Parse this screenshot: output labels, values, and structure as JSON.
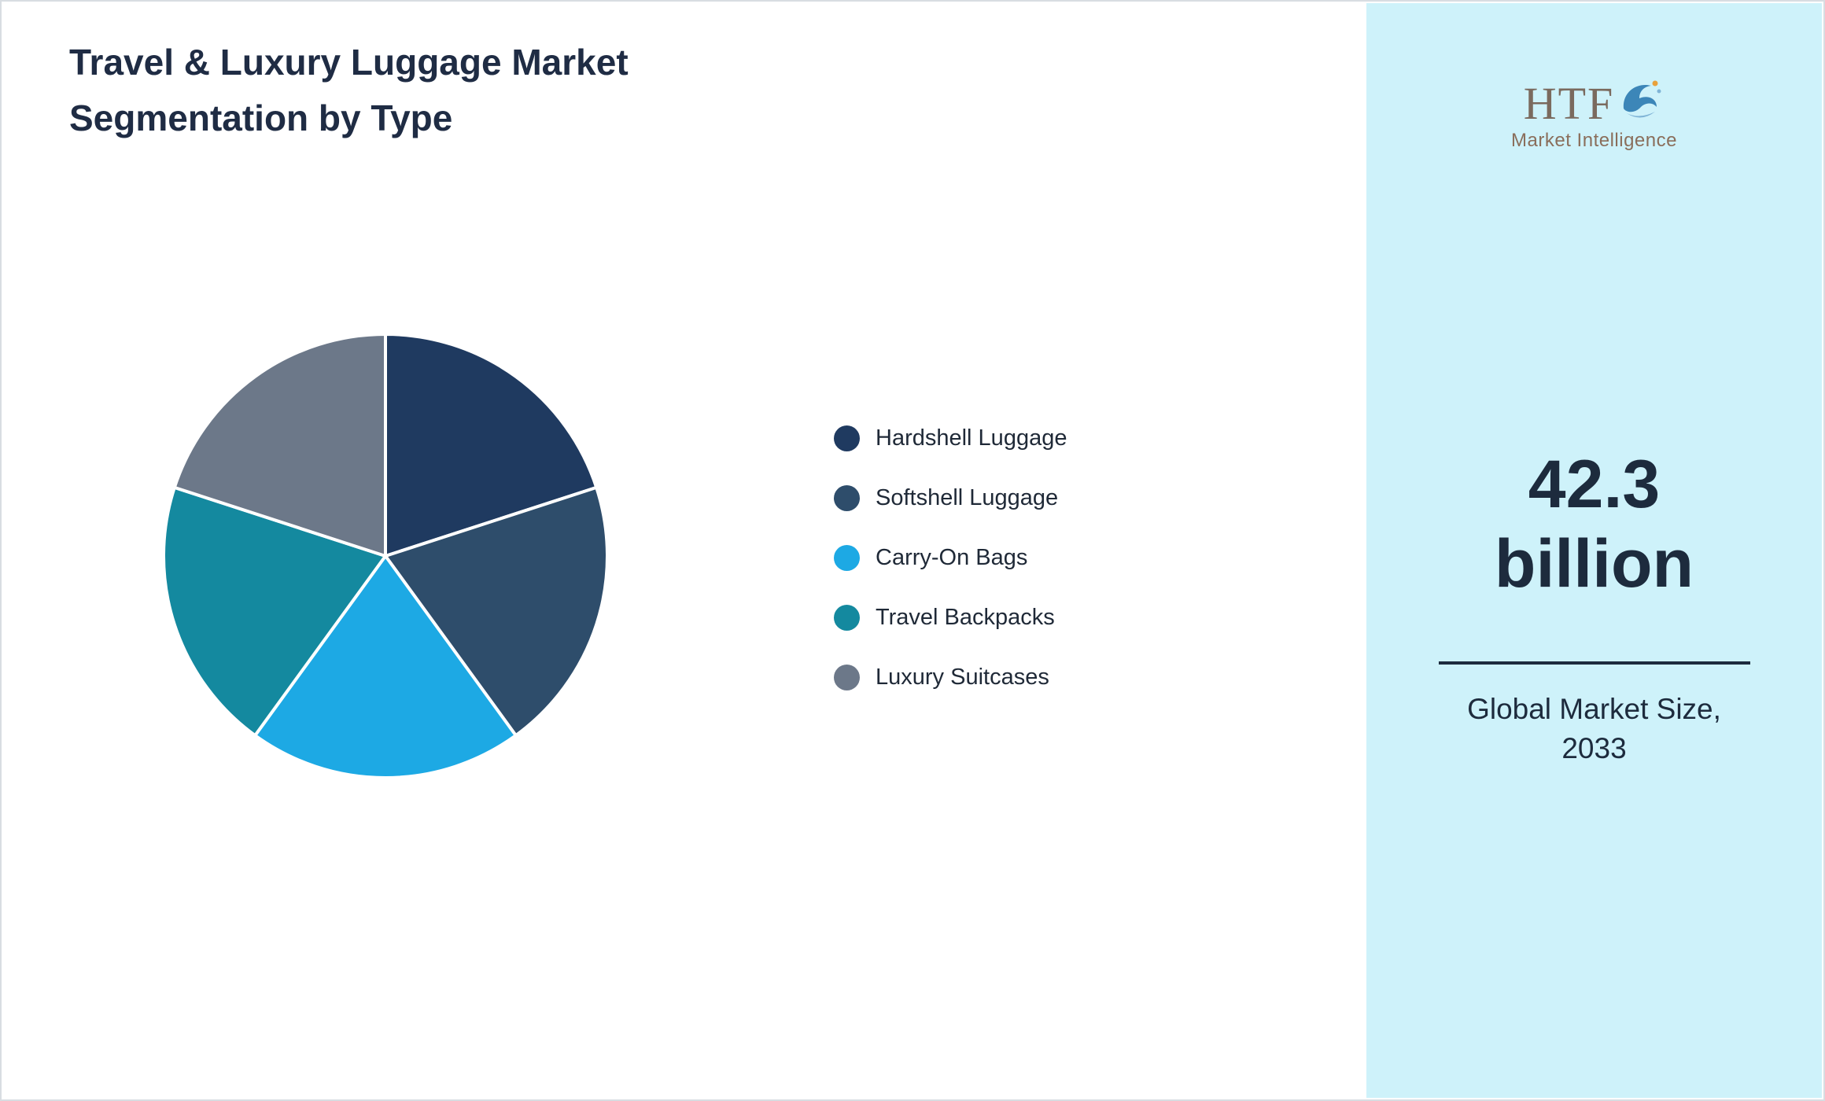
{
  "page": {
    "title_line1": "Travel & Luxury Luggage Market",
    "title_line2": "Segmentation by Type"
  },
  "chart_data": {
    "type": "pie",
    "title": "Travel & Luxury Luggage Market Segmentation by Type",
    "start_angle_deg": -90,
    "direction": "clockwise",
    "legend_position": "right",
    "series": [
      {
        "label": "Hardshell Luggage",
        "value": 20,
        "color": "#1f3a60"
      },
      {
        "label": "Softshell Luggage",
        "value": 20,
        "color": "#2e4d6b"
      },
      {
        "label": "Carry-On Bags",
        "value": 20,
        "color": "#1da9e4"
      },
      {
        "label": "Travel Backpacks",
        "value": 20,
        "color": "#14899f"
      },
      {
        "label": "Luxury Suitcases",
        "value": 20,
        "color": "#6c7889"
      }
    ]
  },
  "sidebar": {
    "background": "#cef2fa",
    "logo": {
      "text": "HTF",
      "subtext": "Market Intelligence",
      "dolphin_icon": "dolphin-splash",
      "colors": {
        "text": "#7a6a5e",
        "dolphin": "#3c86b8",
        "dolphin_light": "#7fb4d6",
        "accent": "#e8a13c"
      }
    },
    "stat": {
      "value_line1": "42.3",
      "value_line2": "billion",
      "caption_line1": "Global Market Size,",
      "caption_line2": "2033"
    }
  }
}
